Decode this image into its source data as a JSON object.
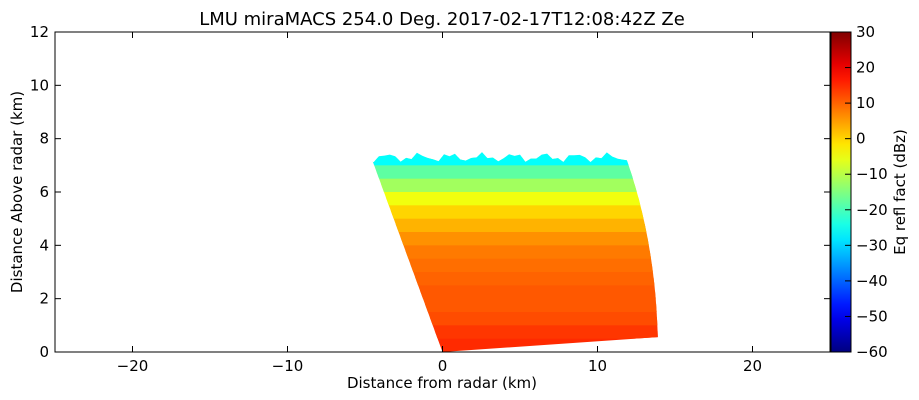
{
  "chart_data": {
    "type": "heatmap",
    "title": "LMU miraMACS 254.0 Deg. 2017-02-17T12:08:42Z  Ze",
    "xlabel": "Distance from radar (km)",
    "ylabel": "Distance Above radar  (km)",
    "xlim": [
      -25,
      25
    ],
    "ylim": [
      0,
      12
    ],
    "xticks": [
      -20,
      -10,
      0,
      10,
      20
    ],
    "yticks": [
      0,
      2,
      4,
      6,
      8,
      10,
      12
    ],
    "xtick_labels": [
      "−20",
      "−10",
      "0",
      "10",
      "20"
    ],
    "ytick_labels": [
      "0",
      "2",
      "4",
      "6",
      "8",
      "10",
      "12"
    ],
    "grid": false,
    "colorbar": {
      "label": "Eq refl fact (dBz)",
      "range": [
        -60,
        30
      ],
      "ticks": [
        -60,
        -50,
        -40,
        -30,
        -20,
        -10,
        0,
        10,
        20,
        30
      ],
      "tick_labels": [
        "−60",
        "−50",
        "−40",
        "−30",
        "−20",
        "−10",
        "0",
        "10",
        "20",
        "30"
      ],
      "colormap": "jet"
    },
    "scan": {
      "azimuth_deg": 254.0,
      "max_range_km": 13.9,
      "elevation_angle_range_deg": [
        2.3,
        122.2
      ]
    },
    "reflectivity_profile": {
      "height_km": [
        0.0,
        0.5,
        1.0,
        1.5,
        2.0,
        2.5,
        3.0,
        3.5,
        4.0,
        4.5,
        5.0,
        5.5,
        6.0,
        6.5,
        7.0,
        7.3
      ],
      "ze_dbz": [
        15,
        14,
        12,
        11,
        11,
        10,
        9,
        8,
        6,
        3,
        0,
        -5,
        -12,
        -18,
        -26,
        -32
      ]
    },
    "echo_top_km": 7.3
  }
}
